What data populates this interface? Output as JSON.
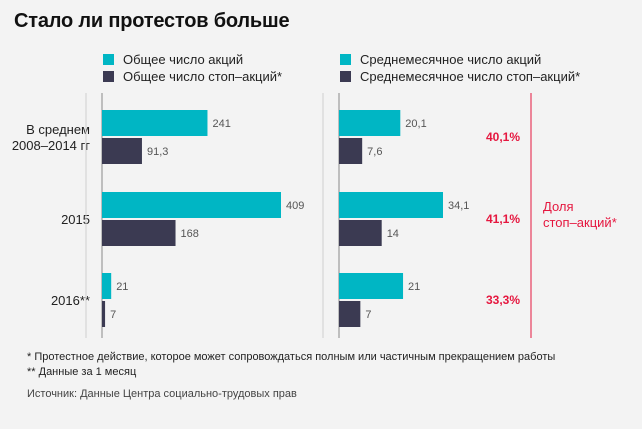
{
  "title": "Стало ли протестов больше",
  "colors": {
    "primary": "#00b6c4",
    "secondary": "#3b3a52",
    "accent": "#e5173f",
    "axis": "#888888"
  },
  "legend_left": [
    {
      "label": "Общее число акций",
      "color": "#00b6c4"
    },
    {
      "label": "Общее число стоп–акций*",
      "color": "#3b3a52"
    }
  ],
  "legend_right": [
    {
      "label": "Среднемесячное число акций",
      "color": "#00b6c4"
    },
    {
      "label": "Среднемесячное число стоп–акций*",
      "color": "#3b3a52"
    }
  ],
  "chart_data": [
    {
      "type": "bar",
      "orientation": "horizontal",
      "categories": [
        "В среднем\n2008–2014 гг",
        "2015",
        "2016**"
      ],
      "series": [
        {
          "name": "Общее число акций",
          "values": [
            241,
            409,
            21
          ],
          "labels": [
            "241",
            "409",
            "21"
          ]
        },
        {
          "name": "Общее число стоп–акций*",
          "values": [
            91.3,
            168,
            7
          ],
          "labels": [
            "91,3",
            "168",
            "7"
          ]
        }
      ],
      "xlim": [
        0,
        409
      ]
    },
    {
      "type": "bar",
      "orientation": "horizontal",
      "categories": [
        "В среднем\n2008–2014 гг",
        "2015",
        "2016**"
      ],
      "series": [
        {
          "name": "Среднемесячное число акций",
          "values": [
            20.1,
            34.1,
            21
          ],
          "labels": [
            "20,1",
            "34,1",
            "21"
          ]
        },
        {
          "name": "Среднемесячное число стоп–акций*",
          "values": [
            7.6,
            14,
            7
          ],
          "labels": [
            "7,6",
            "14",
            "7"
          ]
        }
      ],
      "xlim": [
        0,
        34.1
      ],
      "share": {
        "label": "Доля\nстоп–акций*",
        "values": [
          "40,1%",
          "41,1%",
          "33,3%"
        ]
      }
    }
  ],
  "footnotes": [
    "*  Протестное действие, которое может сопровождаться полным или частичным прекращением работы",
    "** Данные за 1 месяц"
  ],
  "source": "Источник:  Данные Центра социально-трудовых прав"
}
